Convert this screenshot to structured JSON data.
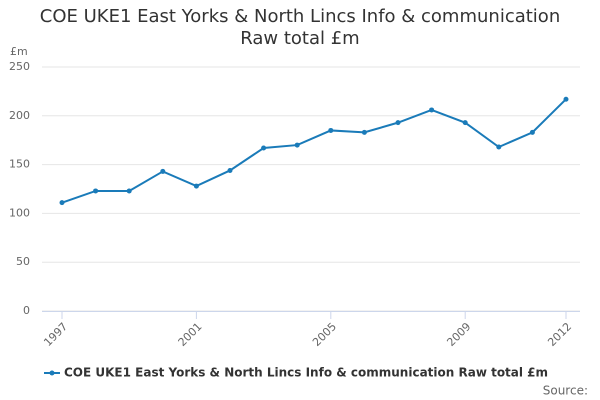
{
  "chart_data": {
    "type": "line",
    "title": "COE UKE1 East Yorks & North Lincs Info & communication Raw total £m",
    "y_axis_label": "£m",
    "source": "Source:",
    "x": [
      1997,
      1998,
      1999,
      2000,
      2001,
      2002,
      2003,
      2004,
      2005,
      2006,
      2007,
      2008,
      2009,
      2010,
      2011,
      2012
    ],
    "series": [
      {
        "name": "COE UKE1 East Yorks & North Lincs Info & communication Raw total £m",
        "color": "#1a7bb9",
        "values": [
          111,
          123,
          123,
          143,
          128,
          144,
          167,
          170,
          185,
          183,
          193,
          206,
          193,
          168,
          183,
          217
        ]
      }
    ],
    "xlim": [
      1997,
      2012
    ],
    "xticks": [
      1997,
      2001,
      2005,
      2009,
      2012
    ],
    "ylim": [
      0,
      250
    ],
    "yticks": [
      0,
      50,
      100,
      150,
      200,
      250
    ],
    "grid": true,
    "legend": "bottom"
  }
}
